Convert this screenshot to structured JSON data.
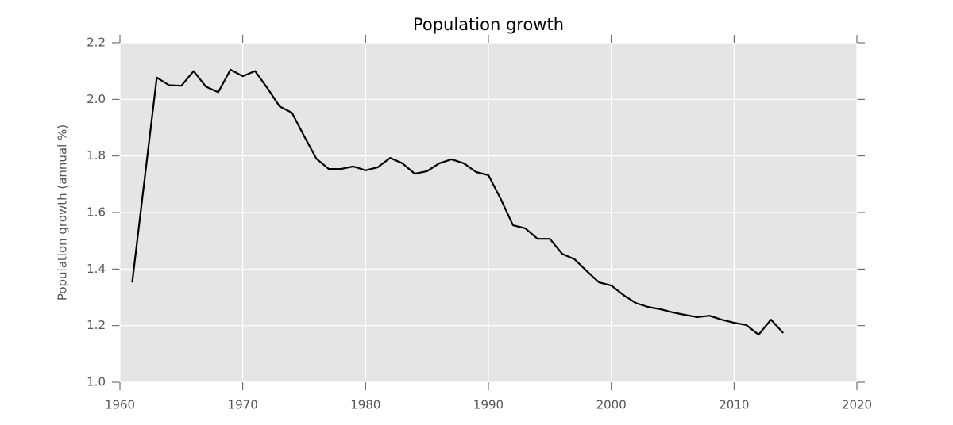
{
  "chart_data": {
    "type": "line",
    "title": "Population growth",
    "ylabel": "Population growth (annual %)",
    "x": [
      1961,
      1962,
      1963,
      1964,
      1965,
      1966,
      1967,
      1968,
      1969,
      1970,
      1971,
      1972,
      1973,
      1974,
      1975,
      1976,
      1977,
      1978,
      1979,
      1980,
      1981,
      1982,
      1983,
      1984,
      1985,
      1986,
      1987,
      1988,
      1989,
      1990,
      1991,
      1992,
      1993,
      1994,
      1995,
      1996,
      1997,
      1998,
      1999,
      2000,
      2001,
      2002,
      2003,
      2004,
      2005,
      2006,
      2007,
      2008,
      2009,
      2010,
      2011,
      2012,
      2013,
      2014
    ],
    "values": [
      1.353,
      1.715,
      2.077,
      2.05,
      2.048,
      2.1,
      2.045,
      2.025,
      2.105,
      2.082,
      2.1,
      2.04,
      1.975,
      1.953,
      1.87,
      1.79,
      1.754,
      1.754,
      1.763,
      1.749,
      1.76,
      1.793,
      1.774,
      1.737,
      1.746,
      1.774,
      1.788,
      1.774,
      1.743,
      1.732,
      1.648,
      1.555,
      1.544,
      1.507,
      1.507,
      1.454,
      1.435,
      1.393,
      1.353,
      1.342,
      1.308,
      1.28,
      1.266,
      1.258,
      1.247,
      1.238,
      1.23,
      1.235,
      1.221,
      1.21,
      1.202,
      1.168,
      1.221,
      1.174
    ],
    "color": "#000000",
    "xlim": [
      1960,
      2020
    ],
    "xticks": [
      1960,
      1970,
      1980,
      1990,
      2000,
      2010,
      2020
    ],
    "ylim": [
      1.0,
      2.2
    ],
    "yticks": [
      {
        "value": 1.0,
        "label": "1.0"
      },
      1.2,
      1.4,
      1.6,
      1.8,
      {
        "value": 2.0,
        "label": "2.0"
      },
      2.2
    ],
    "grid": true
  }
}
